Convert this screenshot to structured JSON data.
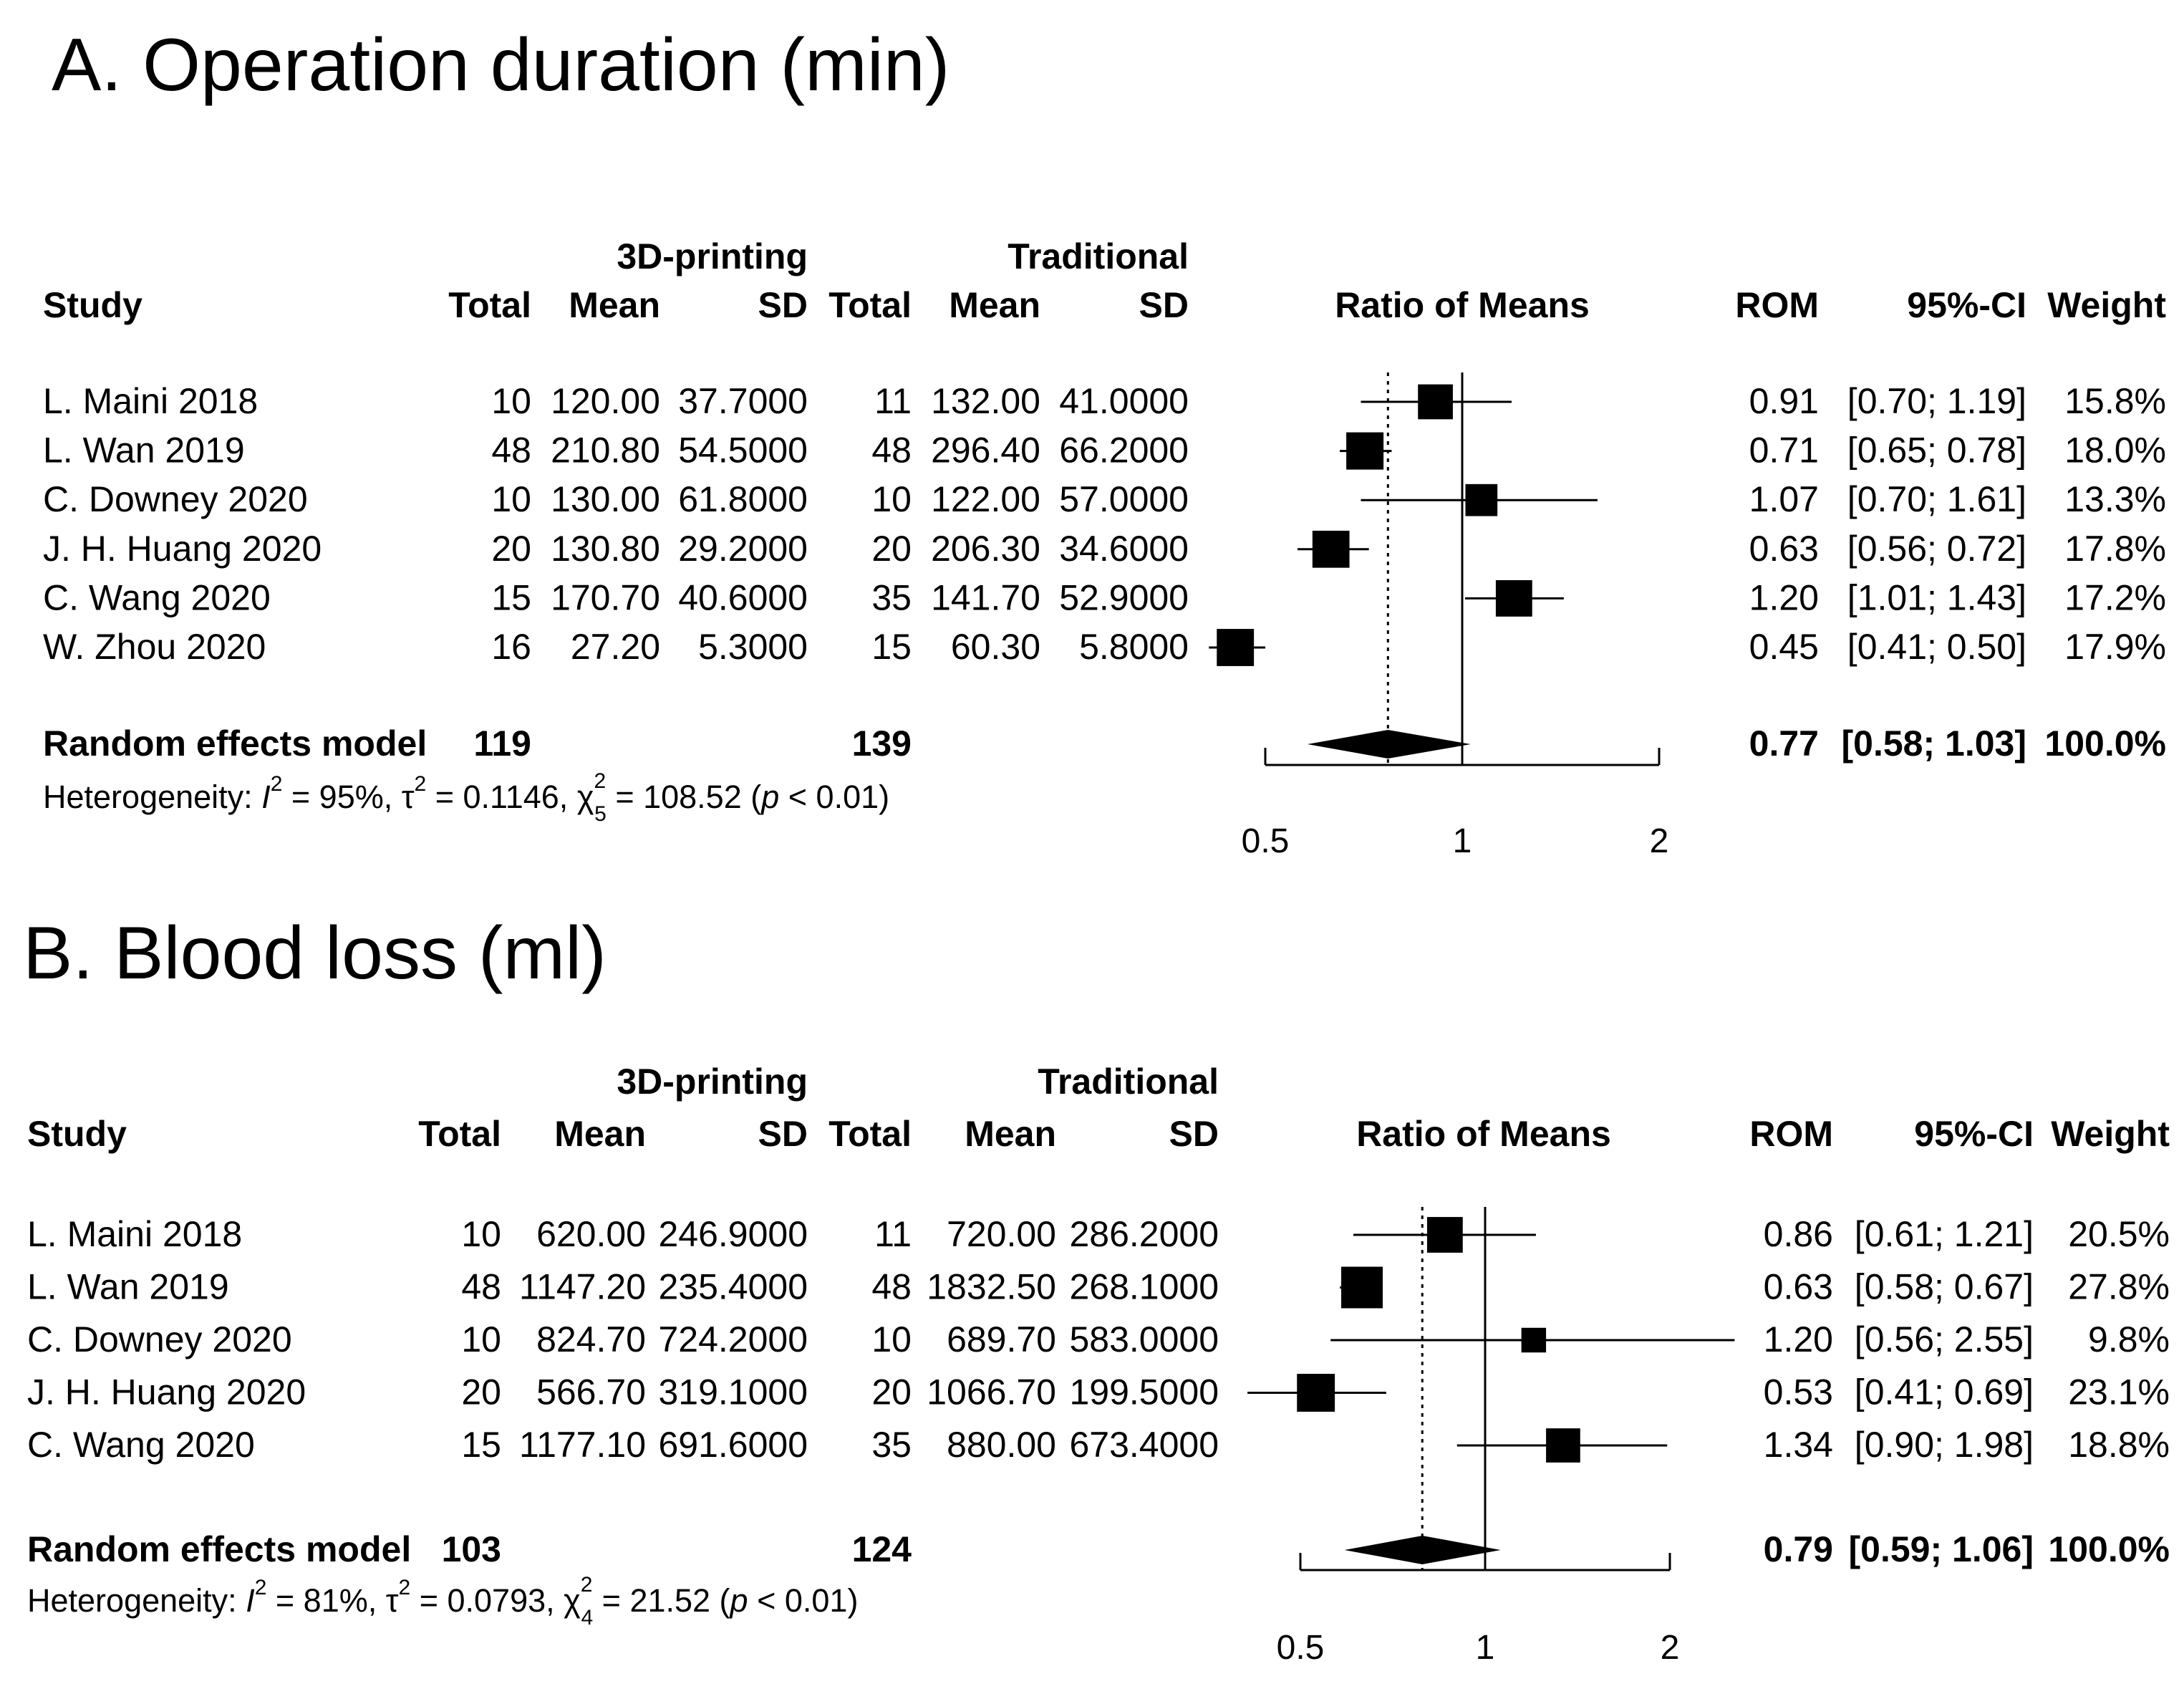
{
  "chart_data": [
    {
      "type": "forest",
      "title": "A. Operation duration (min)",
      "group_headers": {
        "exp": "3D-printing",
        "ctrl": "Traditional"
      },
      "columns": {
        "study": "Study",
        "e_total": "Total",
        "e_mean": "Mean",
        "e_sd": "SD",
        "c_total": "Total",
        "c_mean": "Mean",
        "c_sd": "SD",
        "effect": "Ratio of Means",
        "rom": "ROM",
        "ci": "95%-CI",
        "weight": "Weight"
      },
      "studies": [
        {
          "study": "L. Maini 2018",
          "e_total": "10",
          "e_mean": "120.00",
          "e_sd": "37.7000",
          "c_total": "11",
          "c_mean": "132.00",
          "c_sd": "41.0000",
          "rom_label": "0.91",
          "ci_label": "[0.70; 1.19]",
          "weight_label": "15.8%",
          "rom": 0.91,
          "lower": 0.7,
          "upper": 1.19,
          "weight": 15.8
        },
        {
          "study": "L. Wan 2019",
          "e_total": "48",
          "e_mean": "210.80",
          "e_sd": "54.5000",
          "c_total": "48",
          "c_mean": "296.40",
          "c_sd": "66.2000",
          "rom_label": "0.71",
          "ci_label": "[0.65; 0.78]",
          "weight_label": "18.0%",
          "rom": 0.71,
          "lower": 0.65,
          "upper": 0.78,
          "weight": 18.0
        },
        {
          "study": "C. Downey 2020",
          "e_total": "10",
          "e_mean": "130.00",
          "e_sd": "61.8000",
          "c_total": "10",
          "c_mean": "122.00",
          "c_sd": "57.0000",
          "rom_label": "1.07",
          "ci_label": "[0.70; 1.61]",
          "weight_label": "13.3%",
          "rom": 1.07,
          "lower": 0.7,
          "upper": 1.61,
          "weight": 13.3
        },
        {
          "study": "J. H. Huang 2020",
          "e_total": "20",
          "e_mean": "130.80",
          "e_sd": "29.2000",
          "c_total": "20",
          "c_mean": "206.30",
          "c_sd": "34.6000",
          "rom_label": "0.63",
          "ci_label": "[0.56; 0.72]",
          "weight_label": "17.8%",
          "rom": 0.63,
          "lower": 0.56,
          "upper": 0.72,
          "weight": 17.8
        },
        {
          "study": "C. Wang 2020",
          "e_total": "15",
          "e_mean": "170.70",
          "e_sd": "40.6000",
          "c_total": "35",
          "c_mean": "141.70",
          "c_sd": "52.9000",
          "rom_label": "1.20",
          "ci_label": "[1.01; 1.43]",
          "weight_label": "17.2%",
          "rom": 1.2,
          "lower": 1.01,
          "upper": 1.43,
          "weight": 17.2
        },
        {
          "study": "W. Zhou 2020",
          "e_total": "16",
          "e_mean": "27.20",
          "e_sd": "5.3000",
          "c_total": "15",
          "c_mean": "60.30",
          "c_sd": "5.8000",
          "rom_label": "0.45",
          "ci_label": "[0.41; 0.50]",
          "weight_label": "17.9%",
          "rom": 0.45,
          "lower": 0.41,
          "upper": 0.5,
          "weight": 17.9
        }
      ],
      "pooled": {
        "label": "Random effects model",
        "e_total": "119",
        "c_total": "139",
        "rom_label": "0.77",
        "ci_label": "[0.58; 1.03]",
        "weight_label": "100.0%",
        "rom": 0.77,
        "lower": 0.58,
        "upper": 1.03
      },
      "heterogeneity": {
        "prefix": "Heterogeneity: ",
        "i_sym": "I",
        "i_exp": "2",
        "i_val": " = 95%, ",
        "tau_sym": "τ",
        "tau_exp": "2",
        "tau_val": " = 0.1146, ",
        "chi_sym": "χ",
        "chi_exp": "2",
        "chi_sub": "5",
        "chi_val": " = 108.52 (",
        "p_sym": "p",
        "p_val": " < 0.01)"
      },
      "axis": {
        "scale": "log",
        "ticks": [
          0.5,
          1,
          2
        ],
        "tick_labels": [
          "0.5",
          "1",
          "2"
        ],
        "null_line": 1
      }
    },
    {
      "type": "forest",
      "title": "B. Blood loss (ml)",
      "group_headers": {
        "exp": "3D-printing",
        "ctrl": "Traditional"
      },
      "columns": {
        "study": "Study",
        "e_total": "Total",
        "e_mean": "Mean",
        "e_sd": "SD",
        "c_total": "Total",
        "c_mean": "Mean",
        "c_sd": "SD",
        "effect": "Ratio of Means",
        "rom": "ROM",
        "ci": "95%-CI",
        "weight": "Weight"
      },
      "studies": [
        {
          "study": "L. Maini 2018",
          "e_total": "10",
          "e_mean": "620.00",
          "e_sd": "246.9000",
          "c_total": "11",
          "c_mean": "720.00",
          "c_sd": "286.2000",
          "rom_label": "0.86",
          "ci_label": "[0.61; 1.21]",
          "weight_label": "20.5%",
          "rom": 0.86,
          "lower": 0.61,
          "upper": 1.21,
          "weight": 20.5
        },
        {
          "study": "L. Wan 2019",
          "e_total": "48",
          "e_mean": "1147.20",
          "e_sd": "235.4000",
          "c_total": "48",
          "c_mean": "1832.50",
          "c_sd": "268.1000",
          "rom_label": "0.63",
          "ci_label": "[0.58; 0.67]",
          "weight_label": "27.8%",
          "rom": 0.63,
          "lower": 0.58,
          "upper": 0.67,
          "weight": 27.8
        },
        {
          "study": "C. Downey 2020",
          "e_total": "10",
          "e_mean": "824.70",
          "e_sd": "724.2000",
          "c_total": "10",
          "c_mean": "689.70",
          "c_sd": "583.0000",
          "rom_label": "1.20",
          "ci_label": "[0.56; 2.55]",
          "weight_label": "9.8%",
          "rom": 1.2,
          "lower": 0.56,
          "upper": 2.55,
          "weight": 9.8
        },
        {
          "study": "J. H. Huang 2020",
          "e_total": "20",
          "e_mean": "566.70",
          "e_sd": "319.1000",
          "c_total": "20",
          "c_mean": "1066.70",
          "c_sd": "199.5000",
          "rom_label": "0.53",
          "ci_label": "[0.41; 0.69]",
          "weight_label": "23.1%",
          "rom": 0.53,
          "lower": 0.41,
          "upper": 0.69,
          "weight": 23.1
        },
        {
          "study": "C. Wang 2020",
          "e_total": "15",
          "e_mean": "1177.10",
          "e_sd": "691.6000",
          "c_total": "35",
          "c_mean": "880.00",
          "c_sd": "673.4000",
          "rom_label": "1.34",
          "ci_label": "[0.90; 1.98]",
          "weight_label": "18.8%",
          "rom": 1.34,
          "lower": 0.9,
          "upper": 1.98,
          "weight": 18.8
        }
      ],
      "pooled": {
        "label": "Random effects model",
        "e_total": "103",
        "c_total": "124",
        "rom_label": "0.79",
        "ci_label": "[0.59; 1.06]",
        "weight_label": "100.0%",
        "rom": 0.79,
        "lower": 0.59,
        "upper": 1.06
      },
      "heterogeneity": {
        "prefix": "Heterogeneity: ",
        "i_sym": "I",
        "i_exp": "2",
        "i_val": " = 81%, ",
        "tau_sym": "τ",
        "tau_exp": "2",
        "tau_val": " = 0.0793, ",
        "chi_sym": "χ",
        "chi_exp": "2",
        "chi_sub": "4",
        "chi_val": " = 21.52 (",
        "p_sym": "p",
        "p_val": " < 0.01)"
      },
      "axis": {
        "scale": "log",
        "ticks": [
          0.5,
          1,
          2
        ],
        "tick_labels": [
          "0.5",
          "1",
          "2"
        ],
        "null_line": 1
      }
    }
  ]
}
